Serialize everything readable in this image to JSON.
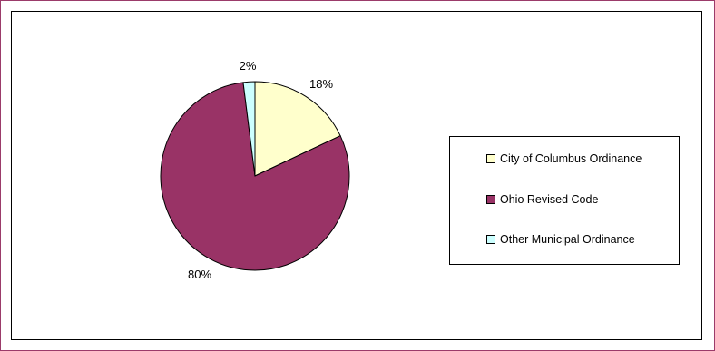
{
  "chart_data": {
    "type": "pie",
    "slices": [
      {
        "label": "City of Columbus Ordinance",
        "value": 18,
        "display": "18%",
        "color": "#ffffcc"
      },
      {
        "label": "Ohio Revised Code",
        "value": 80,
        "display": "80%",
        "color": "#993366"
      },
      {
        "label": "Other Municipal Ordinance",
        "value": 2,
        "display": "2%",
        "color": "#ccffff"
      }
    ],
    "legend_position": "right",
    "stroke_color": "#000000"
  }
}
